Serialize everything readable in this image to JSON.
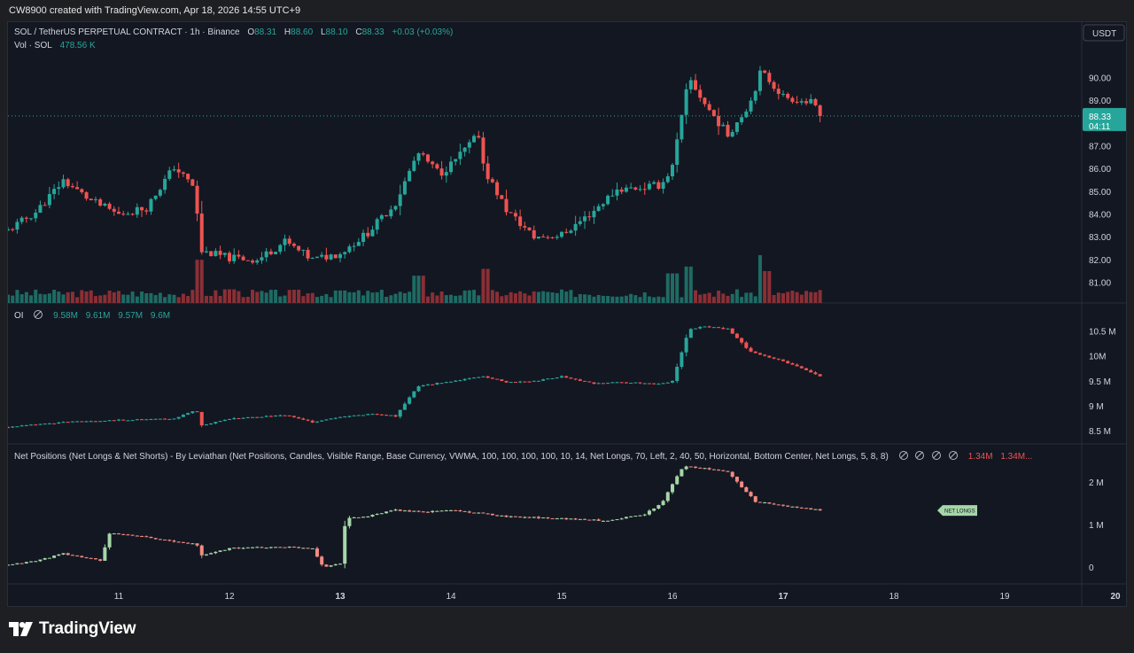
{
  "header": {
    "credit": "CW8900 created with TradingView.com, Apr 18, 2026 14:55 UTC+9"
  },
  "main_legend": {
    "symbol": "SOL / TetherUS PERPETUAL CONTRACT · 1h · Binance",
    "o_label": "O",
    "o_value": "88.31",
    "h_label": "H",
    "h_value": "88.60",
    "l_label": "L",
    "l_value": "88.10",
    "c_label": "C",
    "c_value": "88.33",
    "change": "+0.03 (+0.03%)",
    "vol_label": "Vol · SOL",
    "vol_value": "478.56 K"
  },
  "oi_legend": {
    "label": "OI",
    "values": [
      "9.58M",
      "9.61M",
      "9.57M",
      "9.6M"
    ]
  },
  "net_legend": {
    "label": "Net Positions (Net Longs & Net Shorts) - By Leviathan (Net Positions, Candles, Visible Range, Base Currency, VWMA, 100, 100, 100, 100, 10, 14, Net Longs, 70, Left, 2, 40, 50, Horizontal, Bottom Center, Net Longs, 5, 8, 8)",
    "value_1": "1.34M",
    "value_2": "1.34M..."
  },
  "currency_badge": "USDT",
  "price_tag": {
    "price": "88.33",
    "countdown": "04:11"
  },
  "net_longs_tag": "NET LONGS",
  "footer": {
    "logo_text": "TradingView"
  },
  "colors": {
    "up": "#26a69a",
    "down": "#ef5350",
    "net_up": "#a5d6a7",
    "net_down": "#f28b82",
    "vol_up": "#1e6b64",
    "vol_down": "#8b2f35",
    "background": "#131722"
  },
  "chart_data": [
    {
      "type": "candlestick",
      "pane": "price",
      "y_axis_ticks": [
        "90.00",
        "89.00",
        "88.00",
        "87.00",
        "86.00",
        "85.00",
        "84.00",
        "83.00",
        "82.00",
        "81.00"
      ],
      "ylim": [
        80.3,
        91.6
      ],
      "x_axis_ticks": [
        "11",
        "12",
        "13",
        "14",
        "15",
        "16",
        "17",
        "18",
        "19",
        "20"
      ],
      "x_unit": "day of month (April 2026)",
      "last_price": 88.33,
      "close_path_anchors": [
        [
          10.0,
          83.3
        ],
        [
          10.25,
          84.1
        ],
        [
          10.5,
          85.5
        ],
        [
          10.75,
          84.6
        ],
        [
          11.0,
          84.0
        ],
        [
          11.25,
          84.3
        ],
        [
          11.5,
          86.1
        ],
        [
          11.7,
          85.1
        ],
        [
          11.72,
          82.4
        ],
        [
          12.0,
          82.1
        ],
        [
          12.25,
          82.0
        ],
        [
          12.5,
          82.8
        ],
        [
          12.75,
          82.0
        ],
        [
          13.0,
          82.3
        ],
        [
          13.25,
          83.2
        ],
        [
          13.5,
          84.5
        ],
        [
          13.7,
          86.7
        ],
        [
          13.9,
          85.8
        ],
        [
          14.0,
          86.2
        ],
        [
          14.25,
          87.5
        ],
        [
          14.3,
          86.0
        ],
        [
          14.5,
          84.2
        ],
        [
          14.75,
          83.0
        ],
        [
          15.0,
          83.1
        ],
        [
          15.25,
          84.0
        ],
        [
          15.5,
          85.1
        ],
        [
          15.75,
          85.2
        ],
        [
          15.9,
          85.3
        ],
        [
          16.0,
          86.1
        ],
        [
          16.15,
          90.0
        ],
        [
          16.3,
          88.8
        ],
        [
          16.5,
          87.5
        ],
        [
          16.7,
          88.9
        ],
        [
          16.8,
          90.3
        ],
        [
          17.0,
          89.2
        ],
        [
          17.25,
          88.9
        ],
        [
          17.35,
          88.33
        ]
      ],
      "volume_ylim": [
        0,
        280
      ]
    },
    {
      "type": "candlestick",
      "pane": "OI",
      "y_axis_ticks": [
        "10.5 M",
        "10M",
        "9.5 M",
        "9 M",
        "8.5 M"
      ],
      "ylim": [
        8.35,
        10.75
      ],
      "close_path_anchors": [
        [
          10.0,
          8.58
        ],
        [
          10.5,
          8.68
        ],
        [
          11.0,
          8.72
        ],
        [
          11.5,
          8.75
        ],
        [
          11.7,
          8.93
        ],
        [
          11.75,
          8.62
        ],
        [
          12.0,
          8.75
        ],
        [
          12.5,
          8.82
        ],
        [
          12.75,
          8.68
        ],
        [
          13.0,
          8.78
        ],
        [
          13.3,
          8.85
        ],
        [
          13.5,
          8.8
        ],
        [
          13.7,
          9.4
        ],
        [
          14.0,
          9.5
        ],
        [
          14.3,
          9.6
        ],
        [
          14.5,
          9.48
        ],
        [
          14.75,
          9.5
        ],
        [
          15.0,
          9.6
        ],
        [
          15.3,
          9.45
        ],
        [
          15.5,
          9.48
        ],
        [
          15.9,
          9.45
        ],
        [
          16.0,
          9.5
        ],
        [
          16.15,
          10.55
        ],
        [
          16.3,
          10.6
        ],
        [
          16.5,
          10.55
        ],
        [
          16.7,
          10.1
        ],
        [
          17.0,
          9.9
        ],
        [
          17.35,
          9.6
        ]
      ]
    },
    {
      "type": "candlestick",
      "pane": "net_positions",
      "y_axis_ticks": [
        "2 M",
        "1 M",
        "0"
      ],
      "ylim": [
        -0.35,
        2.45
      ],
      "close_path_anchors": [
        [
          10.0,
          0.05
        ],
        [
          10.25,
          0.15
        ],
        [
          10.5,
          0.32
        ],
        [
          10.75,
          0.2
        ],
        [
          10.85,
          0.15
        ],
        [
          10.9,
          0.8
        ],
        [
          11.25,
          0.72
        ],
        [
          11.5,
          0.6
        ],
        [
          11.7,
          0.55
        ],
        [
          11.75,
          0.28
        ],
        [
          12.0,
          0.45
        ],
        [
          12.5,
          0.48
        ],
        [
          12.75,
          0.45
        ],
        [
          12.85,
          0.0
        ],
        [
          13.0,
          0.1
        ],
        [
          13.05,
          1.15
        ],
        [
          13.25,
          1.2
        ],
        [
          13.5,
          1.35
        ],
        [
          13.75,
          1.3
        ],
        [
          14.0,
          1.35
        ],
        [
          14.5,
          1.2
        ],
        [
          15.0,
          1.15
        ],
        [
          15.4,
          1.1
        ],
        [
          15.75,
          1.25
        ],
        [
          15.9,
          1.5
        ],
        [
          16.1,
          2.4
        ],
        [
          16.5,
          2.25
        ],
        [
          16.75,
          1.55
        ],
        [
          17.0,
          1.45
        ],
        [
          17.35,
          1.34
        ]
      ]
    }
  ]
}
